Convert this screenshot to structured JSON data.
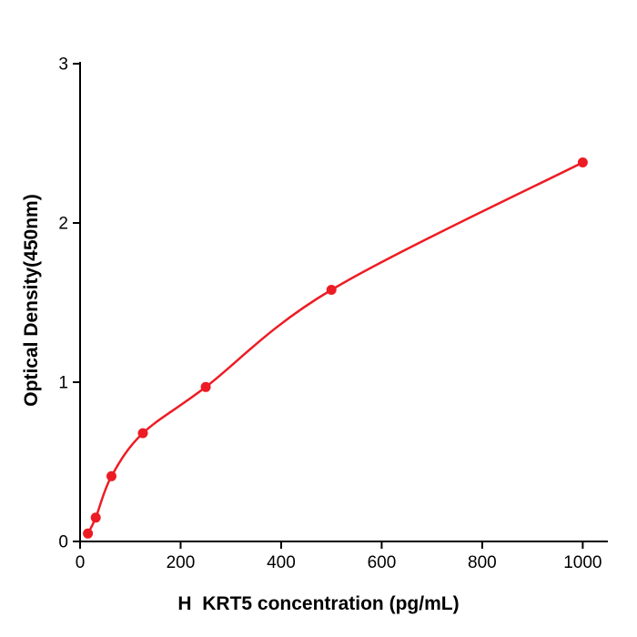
{
  "chart_data": {
    "type": "scatter",
    "title": "",
    "xlabel": "H  KRT5 concentration (pg/mL)",
    "ylabel": "Optical Density(450nm)",
    "x": [
      15.6,
      31.2,
      62.5,
      125,
      250,
      500,
      1000
    ],
    "y": [
      0.05,
      0.15,
      0.41,
      0.68,
      0.97,
      1.58,
      2.38
    ],
    "curve_style": "smooth-through-points",
    "xlim": [
      0,
      1050
    ],
    "ylim": [
      0,
      3
    ],
    "xticks": [
      0,
      200,
      400,
      600,
      800,
      1000
    ],
    "yticks": [
      0,
      1,
      2,
      3
    ],
    "legend": null,
    "grid": false,
    "point_color": "#ed1c24",
    "line_color": "#ed1c24",
    "axis_color": "#000000",
    "point_radius": 5.5
  }
}
